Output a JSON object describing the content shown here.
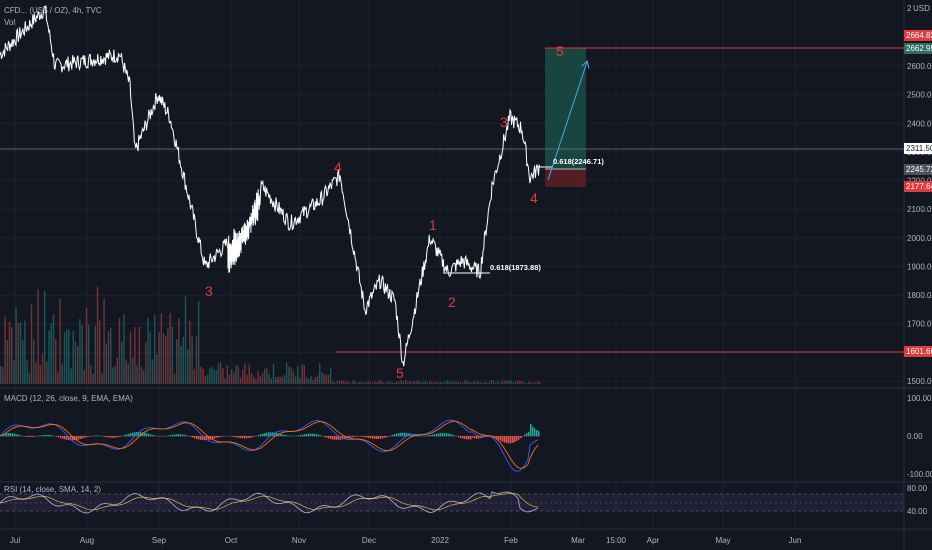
{
  "header": {
    "symbol_line": "CFD... (US$ / OZ), 4h, TVC",
    "volume_label": "Vol"
  },
  "axis": {
    "currency": "USD",
    "currency_prefix": "2",
    "price_ticks": [
      1500,
      1600,
      1700,
      1800,
      1900,
      2000,
      2100,
      2200,
      2300,
      2400,
      2500,
      2600
    ],
    "price_tick_labels": [
      "1500.00",
      "1600.00",
      "1700.00",
      "1800.00",
      "1900.00",
      "2000.00",
      "2100.00",
      "2200.00",
      "2300.00",
      "2400.00",
      "2500.00",
      "2600.00"
    ],
    "macd_ticks": [
      100,
      0,
      -100
    ],
    "macd_tick_labels": [
      "100.00",
      "0.00",
      "-100.00"
    ],
    "rsi_ticks": [
      80,
      40
    ],
    "rsi_tick_labels": [
      "80.00",
      "40.00"
    ],
    "time_labels": [
      "Jul",
      "Aug",
      "Sep",
      "Oct",
      "Nov",
      "Dec",
      "2022",
      "Feb",
      "Mar",
      "15:00",
      "Apr",
      "May",
      "Jun"
    ]
  },
  "price_tags": {
    "tp_top": {
      "value": 2664.82,
      "label": "2664.82",
      "color": "#e0393e"
    },
    "tp": {
      "value": 2662.95,
      "label": "2662.95",
      "color": "#2f6d64"
    },
    "level_2311": {
      "value": 2311.5,
      "label": "2311.50",
      "color": "#ffffff"
    },
    "last": {
      "value": 2245.72,
      "label": "2245.72",
      "color": "#4e525c"
    },
    "stop": {
      "value": 2177.64,
      "label": "2177.64",
      "color": "#e0393e"
    },
    "low_line": {
      "value": 1601.66,
      "label": "1601.66",
      "color": "#e0393e"
    }
  },
  "indicators": {
    "macd_label": "MACD (12, 26, close, 9, EMA, EMA)",
    "rsi_label": "RSI (14, close, SMA, 14, 2)"
  },
  "annotations": {
    "fib_upper": "0.618(2246.71)",
    "fib_lower": "0.618(1873.88)",
    "waves": [
      "3",
      "4",
      "5",
      "1",
      "2",
      "3",
      "4",
      "5"
    ]
  },
  "chart_data": {
    "type": "line",
    "price_min": 1500,
    "price_max": 2700,
    "series": [
      {
        "name": "",
        "x": [
          "Jul",
          "Jul",
          "Aug",
          "Aug",
          "Aug",
          "Sep",
          "Sep",
          "Sep",
          "Sep",
          "Oct",
          "Oct",
          "Oct",
          "Nov",
          "Nov",
          "Nov",
          "Dec",
          "Dec",
          "Dec",
          "Dec",
          "2022",
          "2022",
          "2022",
          "2022",
          "2022",
          "Feb",
          "Feb",
          "Feb",
          "Feb"
        ],
        "values": [
          2640,
          2800,
          2600,
          2640,
          2530,
          2300,
          2500,
          2420,
          1900,
          2100,
          1880,
          2180,
          2050,
          2130,
          2220,
          1750,
          1850,
          1780,
          1560,
          2000,
          1880,
          1920,
          1880,
          2180,
          2420,
          2380,
          2210,
          2250
        ]
      }
    ]
  }
}
